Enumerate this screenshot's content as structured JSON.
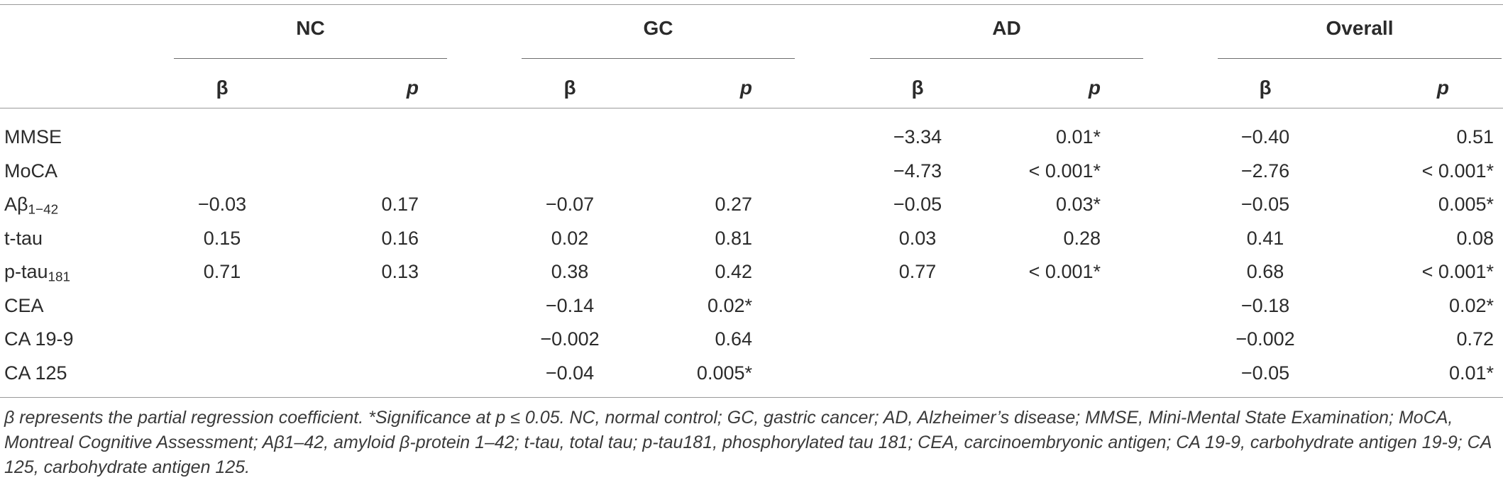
{
  "groups": [
    "NC",
    "GC",
    "AD",
    "Overall"
  ],
  "subheaders": {
    "beta": "β",
    "p": "p"
  },
  "rows": [
    {
      "label": "MMSE",
      "sub": "",
      "cells": [
        "",
        "",
        "",
        "",
        "−3.34",
        "0.01*",
        "−0.40",
        "0.51"
      ]
    },
    {
      "label": "MoCA",
      "sub": "",
      "cells": [
        "",
        "",
        "",
        "",
        "−4.73",
        "< 0.001*",
        "−2.76",
        "< 0.001*"
      ]
    },
    {
      "label": "Aβ",
      "sub": "1−42",
      "cells": [
        "−0.03",
        "0.17",
        "−0.07",
        "0.27",
        "−0.05",
        "0.03*",
        "−0.05",
        "0.005*"
      ]
    },
    {
      "label": "t-tau",
      "sub": "",
      "cells": [
        "0.15",
        "0.16",
        "0.02",
        "0.81",
        "0.03",
        "0.28",
        "0.41",
        "0.08"
      ]
    },
    {
      "label": "p-tau",
      "sub": "181",
      "cells": [
        "0.71",
        "0.13",
        "0.38",
        "0.42",
        "0.77",
        "< 0.001*",
        "0.68",
        "< 0.001*"
      ]
    },
    {
      "label": "CEA",
      "sub": "",
      "cells": [
        "",
        "",
        "−0.14",
        "0.02*",
        "",
        "",
        "−0.18",
        "0.02*"
      ]
    },
    {
      "label": "CA 19-9",
      "sub": "",
      "cells": [
        "",
        "",
        "−0.002",
        "0.64",
        "",
        "",
        "−0.002",
        "0.72"
      ]
    },
    {
      "label": "CA 125",
      "sub": "",
      "cells": [
        "",
        "",
        "−0.04",
        "0.005*",
        "",
        "",
        "−0.05",
        "0.01*"
      ]
    }
  ],
  "footnote": "β represents the partial regression coefficient. *Significance at p ≤ 0.05. NC, normal control; GC, gastric cancer; AD, Alzheimer’s disease; MMSE, Mini-Mental State Examination; MoCA, Montreal Cognitive Assessment; Aβ1–42, amyloid β-protein 1–42; t-tau, total tau; p-tau181, phosphorylated tau 181; CEA, carcinoembryonic antigen; CA 19-9, carbohydrate antigen 19-9; CA 125, carbohydrate antigen 125."
}
